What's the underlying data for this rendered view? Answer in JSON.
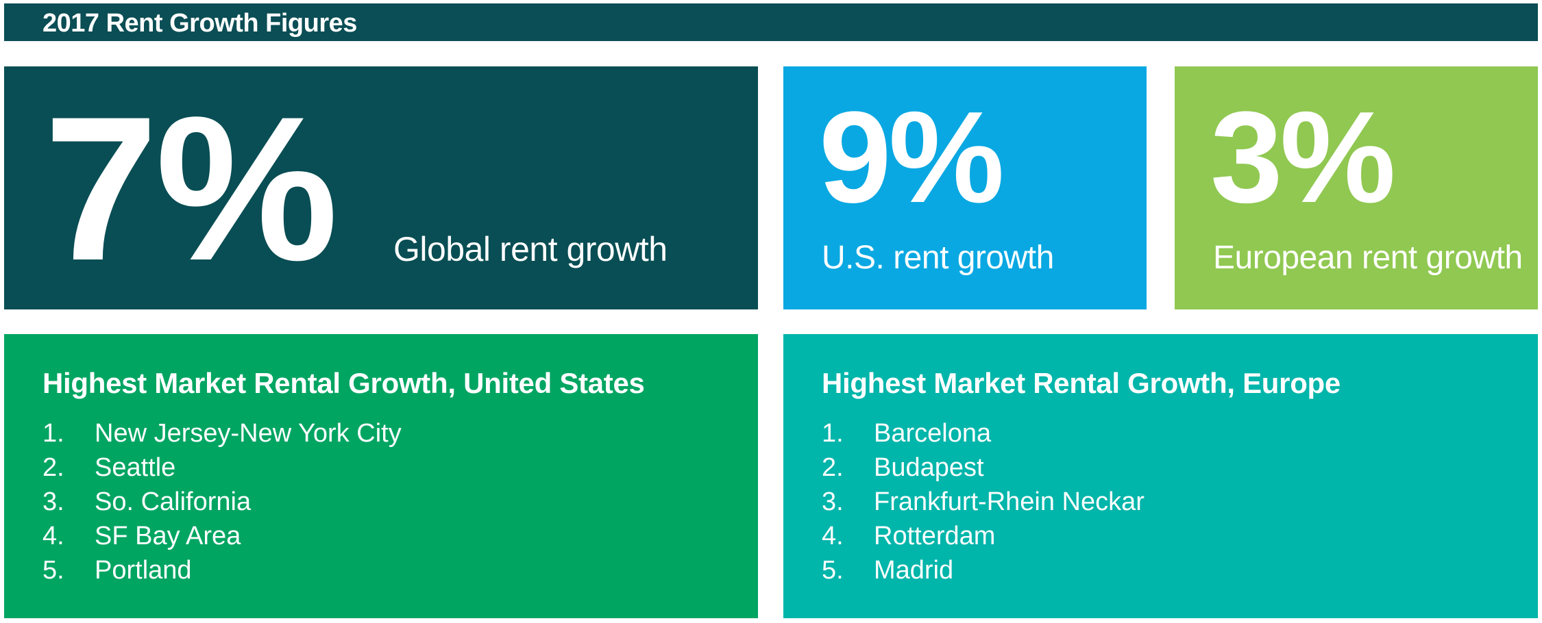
{
  "header": {
    "title": "2017 Rent Growth Figures"
  },
  "stats": [
    {
      "value": "7%",
      "caption": "Global rent growth",
      "color": "#094e54"
    },
    {
      "value": "9%",
      "caption": "U.S. rent growth",
      "color": "#09a8e2"
    },
    {
      "value": "3%",
      "caption": "European rent growth",
      "color": "#90c851"
    }
  ],
  "lists": {
    "us": {
      "title": "Highest Market Rental Growth, United States",
      "color": "#00a562",
      "items": [
        {
          "rank": "1.",
          "name": "New Jersey-New York City"
        },
        {
          "rank": "2.",
          "name": "Seattle"
        },
        {
          "rank": "3.",
          "name": "So. California"
        },
        {
          "rank": "4.",
          "name": "SF Bay Area"
        },
        {
          "rank": "5.",
          "name": "Portland"
        }
      ]
    },
    "eu": {
      "title": "Highest Market Rental Growth, Europe",
      "color": "#00b5aa",
      "items": [
        {
          "rank": "1.",
          "name": "Barcelona"
        },
        {
          "rank": "2.",
          "name": "Budapest"
        },
        {
          "rank": "3.",
          "name": "Frankfurt-Rhein Neckar"
        },
        {
          "rank": "4.",
          "name": "Rotterdam"
        },
        {
          "rank": "5.",
          "name": "Madrid"
        }
      ]
    }
  }
}
